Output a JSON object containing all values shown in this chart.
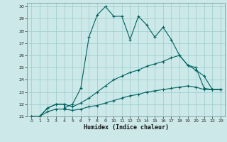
{
  "xlabel": "Humidex (Indice chaleur)",
  "bg_color": "#cce8e8",
  "grid_color": "#99cccc",
  "line_color": "#006060",
  "xlim": [
    -0.5,
    23.5
  ],
  "ylim": [
    21,
    30.3
  ],
  "xticks": [
    0,
    1,
    2,
    3,
    4,
    5,
    6,
    7,
    8,
    9,
    10,
    11,
    12,
    13,
    14,
    15,
    16,
    17,
    18,
    19,
    20,
    21,
    22,
    23
  ],
  "yticks": [
    21,
    22,
    23,
    24,
    25,
    26,
    27,
    28,
    29,
    30
  ],
  "series1_x": [
    0,
    1,
    2,
    3,
    4,
    4,
    5,
    6,
    7,
    8,
    9,
    10,
    11,
    12,
    13,
    14,
    15,
    16,
    17,
    18,
    19,
    20,
    21,
    22,
    23
  ],
  "series1_y": [
    21,
    21,
    21.7,
    22.0,
    22.0,
    21.7,
    22.0,
    23.3,
    27.5,
    29.3,
    30.0,
    29.2,
    29.2,
    27.3,
    29.2,
    28.5,
    27.5,
    28.3,
    27.3,
    26.0,
    25.2,
    24.8,
    24.3,
    23.2,
    23.2
  ],
  "series2_x": [
    0,
    1,
    2,
    3,
    4,
    5,
    6,
    7,
    8,
    9,
    10,
    11,
    12,
    13,
    14,
    15,
    16,
    17,
    18,
    19,
    20,
    21,
    22,
    23
  ],
  "series2_y": [
    21,
    21,
    21.7,
    22.0,
    22.0,
    21.8,
    22.1,
    22.5,
    23.0,
    23.5,
    24.0,
    24.3,
    24.6,
    24.8,
    25.1,
    25.3,
    25.5,
    25.8,
    26.0,
    25.2,
    25.0,
    23.3,
    23.2,
    23.2
  ],
  "series3_x": [
    0,
    1,
    2,
    3,
    4,
    5,
    6,
    7,
    8,
    9,
    10,
    11,
    12,
    13,
    14,
    15,
    16,
    17,
    18,
    19,
    20,
    21,
    22,
    23
  ],
  "series3_y": [
    21,
    21,
    21.4,
    21.6,
    21.6,
    21.5,
    21.6,
    21.8,
    21.9,
    22.1,
    22.3,
    22.5,
    22.7,
    22.8,
    23.0,
    23.1,
    23.2,
    23.3,
    23.4,
    23.5,
    23.4,
    23.2,
    23.2,
    23.2
  ]
}
